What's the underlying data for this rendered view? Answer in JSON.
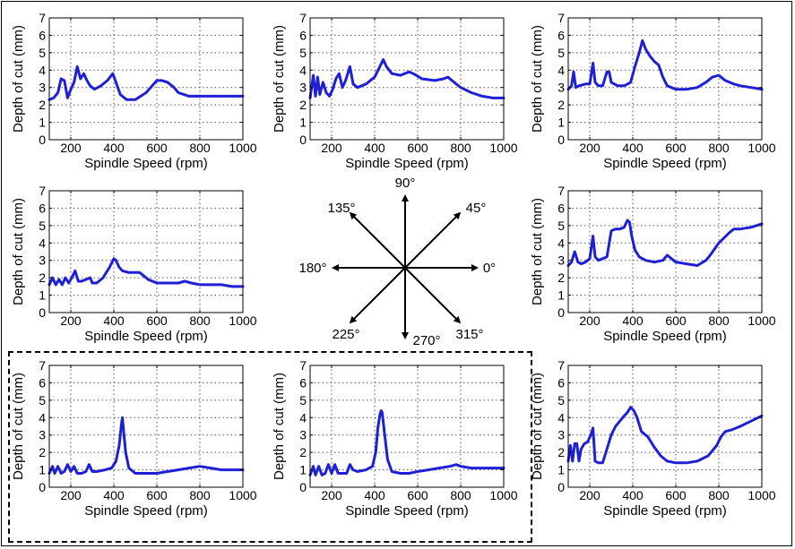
{
  "chart_data": [
    {
      "type": "line",
      "position_name": "135",
      "xlabel": "Spindle Speed (rpm)",
      "ylabel": "Depth of cut (mm)",
      "xlim": [
        100,
        1000
      ],
      "ylim": [
        0,
        7
      ],
      "xticks": [
        200,
        400,
        600,
        800,
        1000
      ],
      "yticks": [
        0,
        1,
        2,
        3,
        4,
        5,
        6,
        7
      ],
      "grid": true,
      "color": "#1f1fd6",
      "series": [
        {
          "x": [
            100,
            120,
            140,
            155,
            170,
            185,
            200,
            215,
            230,
            245,
            260,
            275,
            290,
            310,
            340,
            370,
            395,
            410,
            430,
            460,
            500,
            550,
            600,
            625,
            650,
            680,
            700,
            750,
            800,
            900,
            1000
          ],
          "y": [
            2.3,
            2.4,
            2.7,
            3.5,
            3.4,
            2.4,
            2.9,
            3.3,
            4.2,
            3.5,
            3.8,
            3.4,
            3.1,
            2.9,
            3.1,
            3.4,
            3.8,
            3.3,
            2.6,
            2.3,
            2.3,
            2.7,
            3.4,
            3.4,
            3.3,
            3.0,
            2.7,
            2.5,
            2.5,
            2.5,
            2.5
          ]
        }
      ]
    },
    {
      "type": "line",
      "position_name": "90",
      "xlabel": "Spindle Speed (rpm)",
      "ylabel": "Depth of cut (mm)",
      "xlim": [
        100,
        1000
      ],
      "ylim": [
        0,
        7
      ],
      "xticks": [
        200,
        400,
        600,
        800,
        1000
      ],
      "yticks": [
        0,
        1,
        2,
        3,
        4,
        5,
        6,
        7
      ],
      "grid": true,
      "color": "#1f1fd6",
      "series": [
        {
          "x": [
            100,
            115,
            125,
            135,
            145,
            160,
            175,
            190,
            205,
            220,
            235,
            250,
            265,
            285,
            300,
            320,
            360,
            400,
            420,
            440,
            455,
            480,
            520,
            560,
            580,
            620,
            680,
            720,
            740,
            770,
            800,
            850,
            900,
            950,
            1000
          ],
          "y": [
            2.4,
            3.7,
            2.5,
            3.6,
            2.6,
            3.3,
            2.7,
            2.5,
            2.9,
            3.5,
            3.8,
            3.0,
            3.4,
            4.2,
            3.2,
            3.0,
            3.2,
            3.6,
            4.1,
            4.6,
            4.2,
            3.8,
            3.7,
            3.9,
            3.8,
            3.5,
            3.4,
            3.5,
            3.6,
            3.3,
            3.0,
            2.7,
            2.5,
            2.4,
            2.4
          ]
        }
      ]
    },
    {
      "type": "line",
      "position_name": "45",
      "xlabel": "Spindle Speed (rpm)",
      "ylabel": "Depth of cut (mm)",
      "xlim": [
        100,
        1000
      ],
      "ylim": [
        0,
        7
      ],
      "xticks": [
        200,
        400,
        600,
        800,
        1000
      ],
      "yticks": [
        0,
        1,
        2,
        3,
        4,
        5,
        6,
        7
      ],
      "grid": true,
      "color": "#1f1fd6",
      "series": [
        {
          "x": [
            100,
            115,
            125,
            135,
            150,
            180,
            200,
            215,
            225,
            240,
            260,
            280,
            290,
            300,
            330,
            360,
            390,
            410,
            430,
            445,
            460,
            480,
            500,
            520,
            540,
            560,
            600,
            650,
            700,
            740,
            770,
            800,
            830,
            870,
            900,
            950,
            1000
          ],
          "y": [
            2.9,
            3.1,
            3.9,
            3.0,
            3.1,
            3.2,
            3.2,
            4.4,
            3.3,
            3.1,
            3.1,
            3.9,
            3.9,
            3.3,
            3.1,
            3.1,
            3.3,
            4.2,
            5.0,
            5.7,
            5.2,
            4.8,
            4.5,
            4.3,
            3.6,
            3.1,
            2.9,
            2.9,
            3.0,
            3.3,
            3.6,
            3.7,
            3.4,
            3.2,
            3.1,
            3.0,
            2.9
          ]
        }
      ]
    },
    {
      "type": "line",
      "position_name": "180",
      "xlabel": "Spindle Speed (rpm)",
      "ylabel": "Depth of cut (mm)",
      "xlim": [
        100,
        1000
      ],
      "ylim": [
        0,
        7
      ],
      "xticks": [
        200,
        400,
        600,
        800,
        1000
      ],
      "yticks": [
        0,
        1,
        2,
        3,
        4,
        5,
        6,
        7
      ],
      "grid": true,
      "color": "#1f1fd6",
      "series": [
        {
          "x": [
            100,
            115,
            130,
            145,
            160,
            175,
            190,
            205,
            220,
            235,
            250,
            270,
            290,
            300,
            320,
            350,
            380,
            400,
            410,
            425,
            440,
            470,
            520,
            560,
            600,
            650,
            700,
            730,
            760,
            800,
            850,
            900,
            950,
            1000
          ],
          "y": [
            1.6,
            2.0,
            1.6,
            1.9,
            1.6,
            2.0,
            1.7,
            2.0,
            2.4,
            1.8,
            1.8,
            1.9,
            2.0,
            1.7,
            1.7,
            2.0,
            2.6,
            3.1,
            3.0,
            2.6,
            2.4,
            2.3,
            2.3,
            1.9,
            1.7,
            1.7,
            1.7,
            1.8,
            1.7,
            1.6,
            1.6,
            1.6,
            1.5,
            1.5
          ]
        }
      ]
    },
    {
      "type": "line",
      "position_name": "0",
      "xlabel": "Spindle Speed (rpm)",
      "ylabel": "Depth of cut (mm)",
      "xlim": [
        100,
        1000
      ],
      "ylim": [
        0,
        7
      ],
      "xticks": [
        200,
        400,
        600,
        800,
        1000
      ],
      "yticks": [
        0,
        1,
        2,
        3,
        4,
        5,
        6,
        7
      ],
      "grid": true,
      "color": "#1f1fd6",
      "series": [
        {
          "x": [
            100,
            115,
            130,
            145,
            160,
            180,
            200,
            215,
            225,
            240,
            260,
            280,
            300,
            320,
            340,
            360,
            375,
            385,
            395,
            410,
            430,
            460,
            500,
            540,
            560,
            600,
            650,
            700,
            740,
            760,
            800,
            850,
            870,
            900,
            950,
            1000
          ],
          "y": [
            2.7,
            2.9,
            3.5,
            2.9,
            2.8,
            2.9,
            3.1,
            4.4,
            3.2,
            3.0,
            3.1,
            3.2,
            4.7,
            4.8,
            4.8,
            4.9,
            5.3,
            5.2,
            4.4,
            3.6,
            3.2,
            3.0,
            2.9,
            3.0,
            3.3,
            2.9,
            2.8,
            2.7,
            3.0,
            3.3,
            4.0,
            4.6,
            4.8,
            4.8,
            4.9,
            5.1
          ]
        }
      ]
    },
    {
      "type": "line",
      "position_name": "225",
      "xlabel": "Spindle Speed (rpm)",
      "ylabel": "Depth of cut (mm)",
      "xlim": [
        100,
        1000
      ],
      "ylim": [
        0,
        7
      ],
      "xticks": [
        200,
        400,
        600,
        800,
        1000
      ],
      "yticks": [
        0,
        1,
        2,
        3,
        4,
        5,
        6,
        7
      ],
      "grid": true,
      "color": "#1f1fd6",
      "series": [
        {
          "x": [
            100,
            115,
            125,
            140,
            155,
            170,
            185,
            200,
            215,
            230,
            250,
            270,
            285,
            300,
            320,
            360,
            390,
            410,
            425,
            435,
            440,
            445,
            455,
            470,
            500,
            550,
            600,
            650,
            700,
            750,
            800,
            850,
            900,
            950,
            1000
          ],
          "y": [
            0.8,
            1.2,
            0.8,
            1.2,
            0.8,
            0.9,
            1.3,
            0.9,
            1.2,
            0.8,
            0.8,
            0.9,
            1.3,
            0.9,
            0.9,
            1.0,
            1.1,
            1.5,
            2.4,
            3.6,
            4.0,
            3.3,
            2.0,
            1.1,
            0.8,
            0.8,
            0.8,
            0.9,
            1.0,
            1.1,
            1.2,
            1.1,
            1.0,
            1.0,
            1.0
          ]
        }
      ]
    },
    {
      "type": "line",
      "position_name": "270",
      "xlabel": "Spindle Speed (rpm)",
      "ylabel": "Depth of cut (mm)",
      "xlim": [
        100,
        1000
      ],
      "ylim": [
        0,
        7
      ],
      "xticks": [
        200,
        400,
        600,
        800,
        1000
      ],
      "yticks": [
        0,
        1,
        2,
        3,
        4,
        5,
        6,
        7
      ],
      "grid": true,
      "color": "#1f1fd6",
      "series": [
        {
          "x": [
            100,
            115,
            125,
            140,
            155,
            170,
            185,
            200,
            215,
            230,
            250,
            270,
            285,
            300,
            320,
            360,
            390,
            405,
            415,
            425,
            430,
            435,
            445,
            460,
            480,
            520,
            560,
            600,
            650,
            700,
            750,
            780,
            800,
            850,
            900,
            950,
            1000
          ],
          "y": [
            0.7,
            1.2,
            0.7,
            1.2,
            0.7,
            0.8,
            1.3,
            0.8,
            1.3,
            0.8,
            0.8,
            0.8,
            1.3,
            1.0,
            0.9,
            1.0,
            1.2,
            2.0,
            3.4,
            4.2,
            4.4,
            4.3,
            3.2,
            1.6,
            0.9,
            0.8,
            0.8,
            0.9,
            1.0,
            1.1,
            1.2,
            1.3,
            1.2,
            1.1,
            1.1,
            1.1,
            1.1
          ]
        }
      ]
    },
    {
      "type": "line",
      "position_name": "315",
      "xlabel": "Spindle Speed (rpm)",
      "ylabel": "Depth of cut (mm)",
      "xlim": [
        100,
        1000
      ],
      "ylim": [
        0,
        7
      ],
      "xticks": [
        200,
        400,
        600,
        800,
        1000
      ],
      "yticks": [
        0,
        1,
        2,
        3,
        4,
        5,
        6,
        7
      ],
      "grid": true,
      "color": "#1f1fd6",
      "series": [
        {
          "x": [
            100,
            110,
            120,
            130,
            140,
            150,
            160,
            175,
            190,
            205,
            215,
            225,
            240,
            260,
            280,
            300,
            320,
            340,
            360,
            375,
            390,
            405,
            420,
            440,
            470,
            500,
            530,
            560,
            600,
            650,
            700,
            750,
            790,
            810,
            830,
            860,
            900,
            950,
            1000
          ],
          "y": [
            1.5,
            2.4,
            1.5,
            2.5,
            2.5,
            1.5,
            2.2,
            2.5,
            2.6,
            3.0,
            3.4,
            1.5,
            1.4,
            1.4,
            2.2,
            3.0,
            3.5,
            3.8,
            4.1,
            4.3,
            4.6,
            4.4,
            4.0,
            3.2,
            2.9,
            2.3,
            1.8,
            1.5,
            1.4,
            1.4,
            1.5,
            1.8,
            2.4,
            2.9,
            3.2,
            3.3,
            3.5,
            3.8,
            4.1
          ]
        }
      ]
    }
  ],
  "compass": {
    "labels": [
      "90°",
      "45°",
      "0°",
      "315°",
      "270°",
      "225°",
      "180°",
      "135°"
    ]
  }
}
